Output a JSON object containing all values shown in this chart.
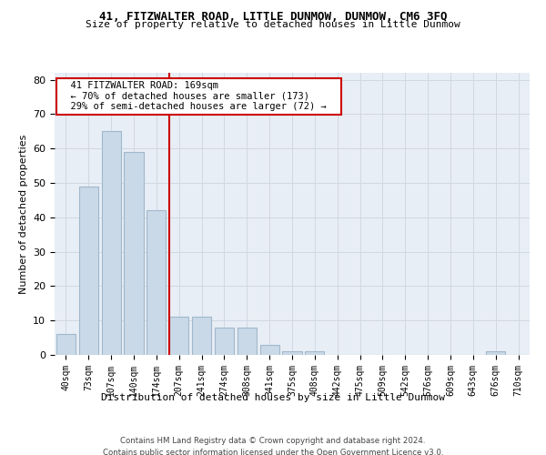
{
  "title": "41, FITZWALTER ROAD, LITTLE DUNMOW, DUNMOW, CM6 3FQ",
  "subtitle": "Size of property relative to detached houses in Little Dunmow",
  "xlabel": "Distribution of detached houses by size in Little Dunmow",
  "ylabel": "Number of detached properties",
  "bar_labels": [
    "40sqm",
    "73sqm",
    "107sqm",
    "140sqm",
    "174sqm",
    "207sqm",
    "241sqm",
    "274sqm",
    "308sqm",
    "341sqm",
    "375sqm",
    "408sqm",
    "442sqm",
    "475sqm",
    "509sqm",
    "542sqm",
    "576sqm",
    "609sqm",
    "643sqm",
    "676sqm",
    "710sqm"
  ],
  "bar_values": [
    6,
    49,
    65,
    59,
    42,
    11,
    11,
    8,
    8,
    3,
    1,
    1,
    0,
    0,
    0,
    0,
    0,
    0,
    0,
    1,
    0
  ],
  "bar_color": "#c9d9e8",
  "bar_edgecolor": "#a0b8cc",
  "grid_color": "#d0d8e4",
  "background_color": "#e8eef5",
  "vline_x": 4.55,
  "vline_color": "#cc0000",
  "annotation_text": "  41 FITZWALTER ROAD: 169sqm  \n  ← 70% of detached houses are smaller (173)  \n  29% of semi-detached houses are larger (72) →  ",
  "annotation_box_color": "#cc0000",
  "footer1": "Contains HM Land Registry data © Crown copyright and database right 2024.",
  "footer2": "Contains public sector information licensed under the Open Government Licence v3.0.",
  "ylim": [
    0,
    82
  ],
  "yticks": [
    0,
    10,
    20,
    30,
    40,
    50,
    60,
    70,
    80
  ]
}
